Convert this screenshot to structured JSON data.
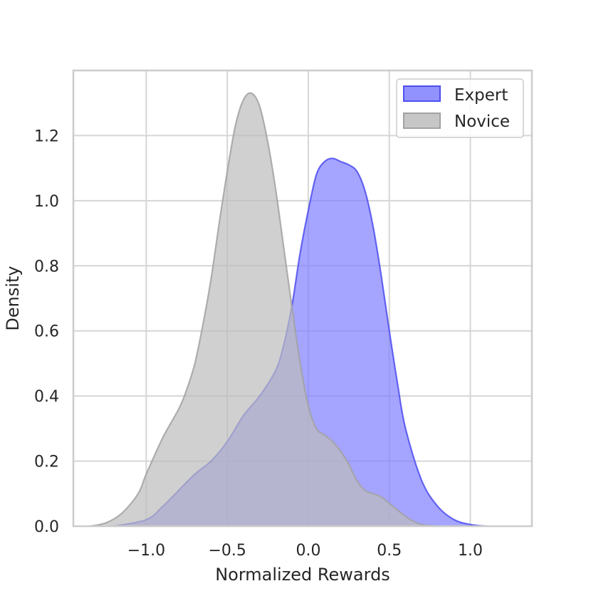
{
  "chart_data": {
    "type": "area",
    "title": "",
    "xlabel": "Normalized Rewards",
    "ylabel": "Density",
    "xlim": [
      -1.45,
      1.38
    ],
    "ylim": [
      0.0,
      1.4
    ],
    "xticks": [
      -1.0,
      -0.5,
      0.0,
      0.5,
      1.0
    ],
    "xtick_labels": [
      "−1.0",
      "−0.5",
      "0.0",
      "0.5",
      "1.0"
    ],
    "yticks": [
      0.0,
      0.2,
      0.4,
      0.6,
      0.8,
      1.0,
      1.2
    ],
    "ytick_labels": [
      "0.0",
      "0.2",
      "0.4",
      "0.6",
      "0.8",
      "1.0",
      "1.2"
    ],
    "grid": true,
    "legend_position": "top-right",
    "series": [
      {
        "name": "Expert",
        "fill": "#7f7fff",
        "stroke": "#4e4ef0",
        "x": [
          -1.2,
          -1.0,
          -0.9,
          -0.8,
          -0.7,
          -0.6,
          -0.5,
          -0.4,
          -0.3,
          -0.2,
          -0.15,
          -0.1,
          -0.05,
          0.0,
          0.05,
          0.1,
          0.15,
          0.2,
          0.25,
          0.3,
          0.35,
          0.4,
          0.45,
          0.5,
          0.55,
          0.6,
          0.7,
          0.8,
          0.9,
          1.0,
          1.1
        ],
        "y": [
          0.0,
          0.02,
          0.06,
          0.11,
          0.16,
          0.2,
          0.26,
          0.34,
          0.4,
          0.48,
          0.56,
          0.68,
          0.84,
          0.97,
          1.08,
          1.12,
          1.13,
          1.12,
          1.11,
          1.09,
          1.03,
          0.92,
          0.77,
          0.6,
          0.44,
          0.3,
          0.14,
          0.06,
          0.02,
          0.005,
          0.0
        ]
      },
      {
        "name": "Novice",
        "fill": "#bcbcbc",
        "stroke": "#a2a2a2",
        "x": [
          -1.35,
          -1.25,
          -1.15,
          -1.05,
          -1.0,
          -0.9,
          -0.8,
          -0.75,
          -0.7,
          -0.65,
          -0.6,
          -0.55,
          -0.5,
          -0.45,
          -0.4,
          -0.35,
          -0.3,
          -0.25,
          -0.2,
          -0.15,
          -0.1,
          -0.05,
          0.0,
          0.05,
          0.1,
          0.15,
          0.2,
          0.25,
          0.3,
          0.35,
          0.4,
          0.45,
          0.5,
          0.55,
          0.6,
          0.65,
          0.7,
          0.8
        ],
        "y": [
          0.0,
          0.01,
          0.04,
          0.1,
          0.16,
          0.27,
          0.36,
          0.42,
          0.5,
          0.62,
          0.76,
          0.93,
          1.09,
          1.23,
          1.31,
          1.33,
          1.29,
          1.18,
          1.03,
          0.85,
          0.67,
          0.5,
          0.37,
          0.3,
          0.28,
          0.26,
          0.23,
          0.19,
          0.14,
          0.11,
          0.1,
          0.09,
          0.07,
          0.05,
          0.03,
          0.015,
          0.005,
          0.0
        ]
      }
    ]
  }
}
